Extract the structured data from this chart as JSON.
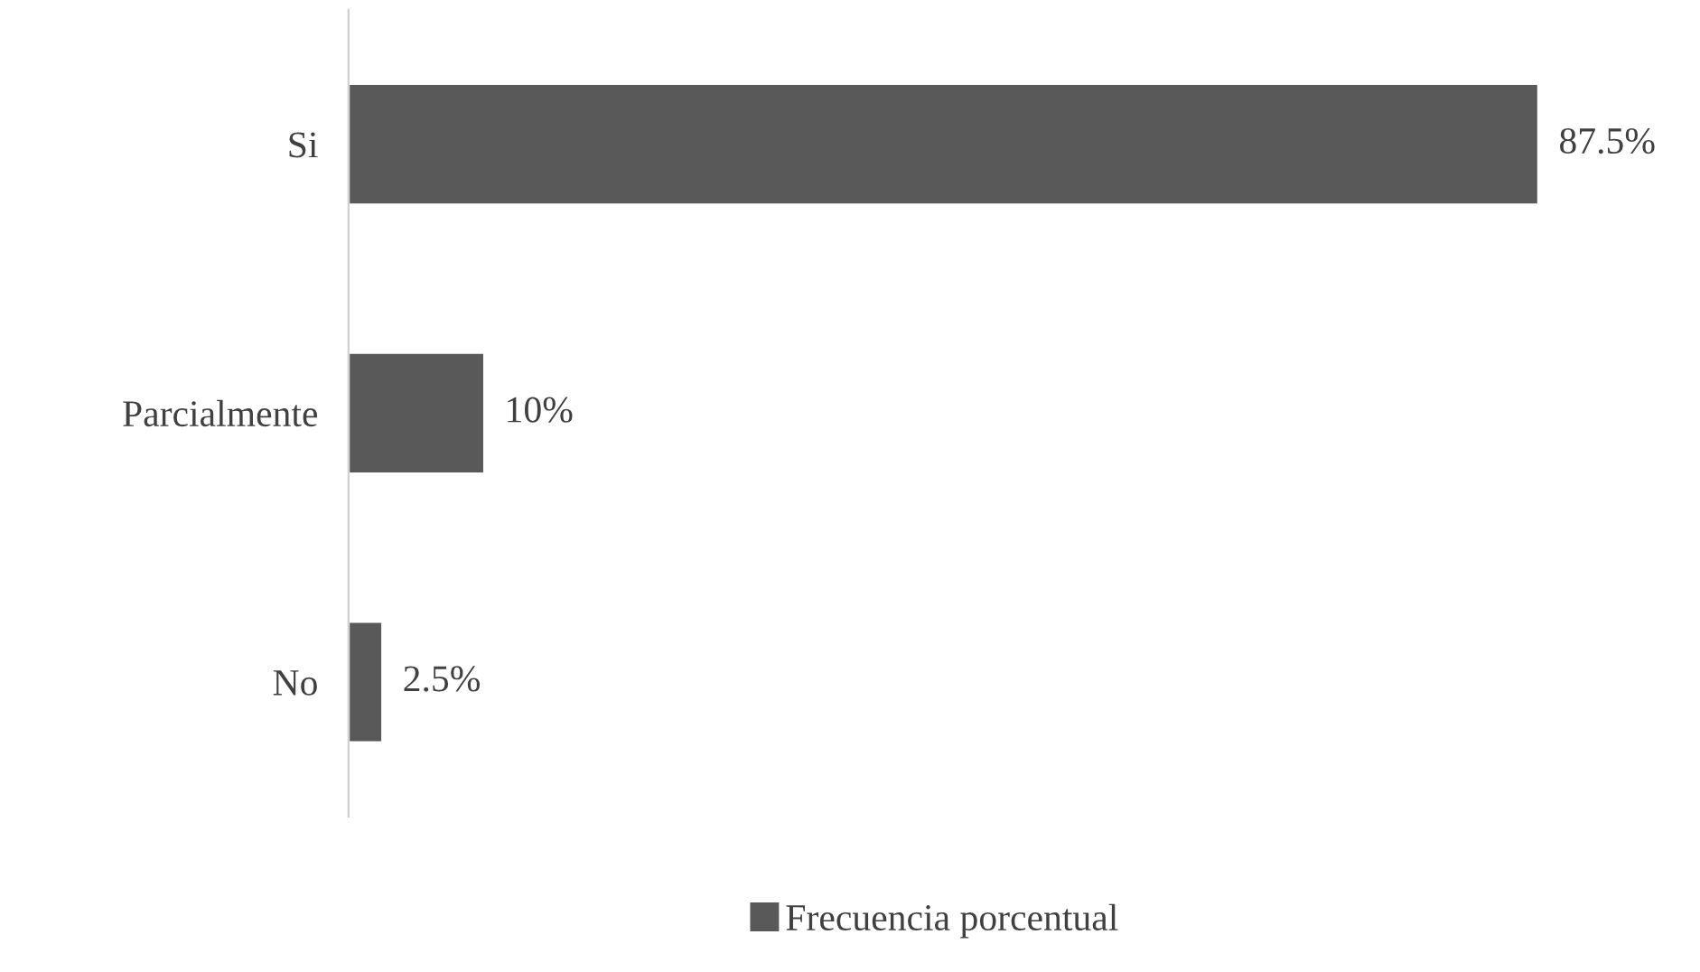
{
  "chart_data": {
    "type": "bar",
    "orientation": "horizontal",
    "categories": [
      "Si",
      "Parcialmente",
      "No"
    ],
    "series": [
      {
        "name": "Frecuencia porcentual",
        "color": "#595959",
        "values": [
          87.5,
          10,
          2.5
        ],
        "value_labels": [
          "87.5%",
          "10%",
          "2.5%"
        ]
      }
    ],
    "legend": "bottom",
    "grid": false
  }
}
